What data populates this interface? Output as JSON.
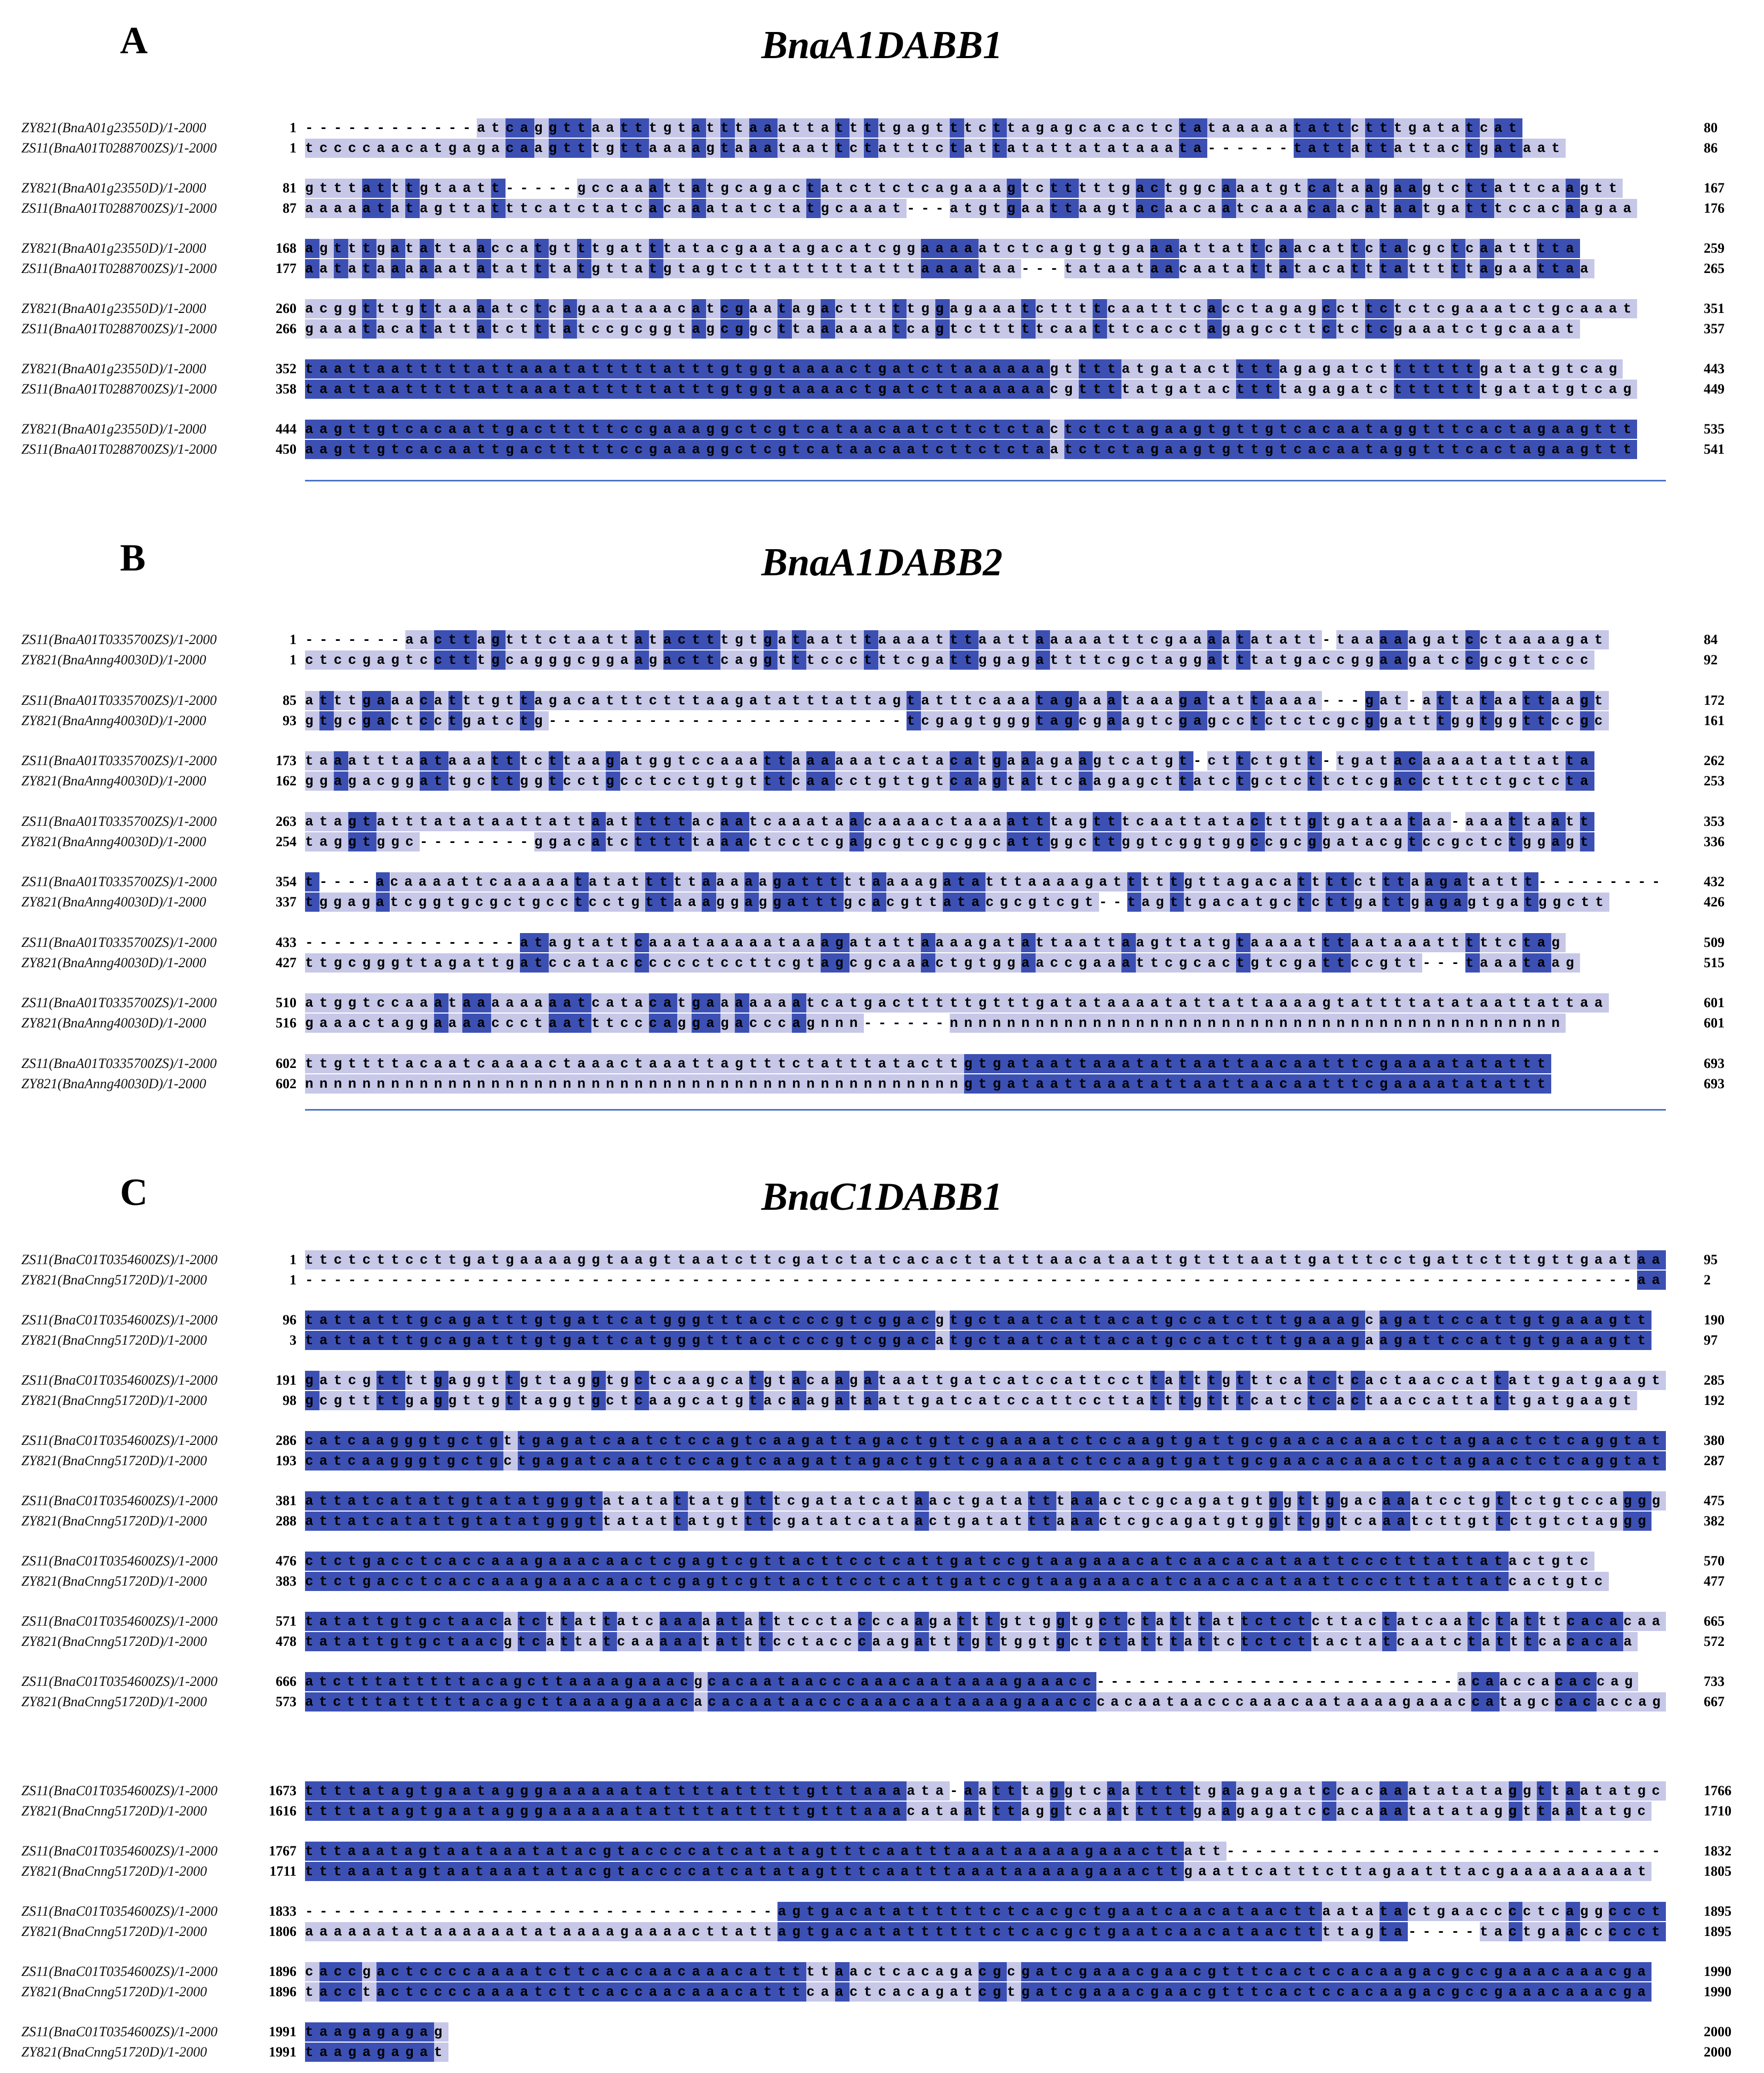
{
  "colors": {
    "dark": "#3c50b4",
    "light": "#c7c7e8",
    "rule": "#4a72c8"
  },
  "panels": [
    {
      "id": "A",
      "letter": "A",
      "title": "BnaA1DABB1",
      "blocks": [
        {
          "rows": [
            {
              "name": "ZY821(BnaA01g23550D)/1-2000",
              "start": "1",
              "seq": "------------atcaggttaatttgtatttaaattattttgagtttcttagagcacactctataaaaatattctttgatatcat",
              "end": "80"
            },
            {
              "name": "ZS11(BnaA01T0288700ZS)/1-2000",
              "start": "1",
              "seq": "tccccaacatgagacaagtttgttaaaagtaaataattctatttctattatattatataaata------tattattattactgataat",
              "end": "86"
            }
          ]
        },
        {
          "rows": [
            {
              "name": "ZY821(BnaA01g23550D)/1-2000",
              "start": "81",
              "seq": "gtttatttgtaatt-----gccaaattatgcagactatcttctcagaaagtctttttgactggcaaatgtcataagaagtcttattcaagtt",
              "end": "167"
            },
            {
              "name": "ZS11(BnaA01T0288700ZS)/1-2000",
              "start": "87",
              "seq": "aaaaatatagttatttcatctatcacaaatatctatgcaaat---atgtgaattaagtacaacaatcaaacaacataatgatttccacaagaa",
              "end": "176"
            }
          ]
        },
        {
          "rows": [
            {
              "name": "ZY821(BnaA01g23550D)/1-2000",
              "start": "168",
              "seq": "agtttgatattaaccatgtttgatttatacgaatagacatcggaaaaatctcagtgtgaaaattattcaacattctacgctcaatttta",
              "end": "259"
            },
            {
              "name": "ZS11(BnaA01T0288700ZS)/1-2000",
              "start": "177",
              "seq": "aatataaaaaatatatttatgttatgtagtcttatttttatttaaaataa---tataataacaatattatacatttatttttagaattaa",
              "end": "265"
            }
          ]
        },
        {
          "rows": [
            {
              "name": "ZY821(BnaA01g23550D)/1-2000",
              "start": "260",
              "seq": "acggtttgttaaaatctcagaataaacatcgaatagactttttggagaaatcttttcaatttcacctagagccttctctcgaaatctgcaaat",
              "end": "351"
            },
            {
              "name": "ZS11(BnaA01T0288700ZS)/1-2000",
              "start": "266",
              "seq": "gaaatacatattatctttatccgcggtagcggcttaaaaaatcagtctttttcaatttcacctagagccttctctcgaaatctgcaaat",
              "end": "357"
            }
          ]
        },
        {
          "rows": [
            {
              "name": "ZY821(BnaA01g23550D)/1-2000",
              "start": "352",
              "seq": "taattaatttttattaaatatttttatttgtggtaaaactgatcttaaaaaagttttatgatacttttagagatctttttttgatatgtcag",
              "end": "443"
            },
            {
              "name": "ZS11(BnaA01T0288700ZS)/1-2000",
              "start": "358",
              "seq": "taattaatttttattaaatatttttatttgtggtaaaactgatcttaaaaaacgttttatgatacttttagagatctttttttgatatgtcag",
              "end": "449"
            }
          ]
        },
        {
          "rows": [
            {
              "name": "ZY821(BnaA01g23550D)/1-2000",
              "start": "444",
              "seq": "aagttgtcacaattgactttttccgaaaggctcgtcataacaatcttctctactctctagaagtgttgtcacaataggtttcactagaagttt",
              "end": "535"
            },
            {
              "name": "ZS11(BnaA01T0288700ZS)/1-2000",
              "start": "450",
              "seq": "aagttgtcacaattgactttttccgaaaggctcgtcataacaatcttctctaatctctagaagtgttgtcacaataggtttcactagaagttt",
              "end": "541"
            }
          ]
        }
      ]
    },
    {
      "id": "B",
      "letter": "B",
      "title": "BnaA1DABB2",
      "blocks": [
        {
          "rows": [
            {
              "name": "ZS11(BnaA01T0335700ZS)/1-2000",
              "start": "1",
              "seq": "-------aacttagtttctaattatactttgtgataatttaaaatttaattaaaaatttcgaaaatatatt-taaaaagatcctaaaagat",
              "end": "84"
            },
            {
              "name": "ZY821(BnaAnng40030D)/1-2000",
              "start": "1",
              "seq": "ctccgagtcctttgcagggcggaagacttcaggtttccctttcgattggagattttcgctaggatttatgaccggaagatccgcgttccc",
              "end": "92"
            }
          ]
        },
        {
          "rows": [
            {
              "name": "ZS11(BnaA01T0335700ZS)/1-2000",
              "start": "85",
              "seq": "atttgaaacatttgttagacatttctttaagatatttattagtatttcaaatagaaataaagatattaaaa---gat-attataattaagt",
              "end": "172"
            },
            {
              "name": "ZY821(BnaAnng40030D)/1-2000",
              "start": "93",
              "seq": "gtgcgactcctgatctg-------------------------tcgagtgggtagcgaagtcgagcctctctcgcggatttggtggttccgc",
              "end": "161"
            }
          ]
        },
        {
          "rows": [
            {
              "name": "ZS11(BnaA01T0335700ZS)/1-2000",
              "start": "173",
              "seq": "taaatttaataaatttcttaagatggtccaaattaaaaaatcatacatgaaagaagtcatgt-cttctgtt-tgatacaaaatattatta",
              "end": "262"
            },
            {
              "name": "ZY821(BnaAnng40030D)/1-2000",
              "start": "162",
              "seq": "ggagacggattgcttggtcctgcctcctgtgtttcaacctgttgtcaagtattcaagagcttatctgctcttctcgacctttctgctcta",
              "end": "253"
            }
          ]
        },
        {
          "rows": [
            {
              "name": "ZS11(BnaA01T0335700ZS)/1-2000",
              "start": "263",
              "seq": "atagtatttatataattattaatttttacaatcaaataacaaaactaaaatttagtttcaattatactttgtgataataa-aaattaatt",
              "end": "353"
            },
            {
              "name": "ZY821(BnaAnng40030D)/1-2000",
              "start": "254",
              "seq": "taggtggc--------ggacatctttttaaactcctcgagcgtcgcggcattggcttggtcggtggccgcggatacgtccgctctggagt",
              "end": "336"
            }
          ]
        },
        {
          "rows": [
            {
              "name": "ZS11(BnaA01T0335700ZS)/1-2000",
              "start": "354",
              "seq": "t----acaaaattcaaaaatatatttttaaaaagatttttaaaagatatttaaaagatttttgttagacattttctttaagatattt---------",
              "end": "432"
            },
            {
              "name": "ZY821(BnaAnng40030D)/1-2000",
              "start": "337",
              "seq": "tggagatcggtgcgctgcctcctgttaaaggaggatttgcacgttatacgcgtcgt--tagttgacatgctcttgattgagagtgatggctt",
              "end": "426"
            }
          ]
        },
        {
          "rows": [
            {
              "name": "ZS11(BnaA01T0335700ZS)/1-2000",
              "start": "433",
              "seq": "---------------atagtattcaaataaaaataaagatattaaaagatattaattaagttatgtaaaatttaataaatttttctag",
              "end": "509"
            },
            {
              "name": "ZY821(BnaAnng40030D)/1-2000",
              "start": "427",
              "seq": "ttgcgggttagattgatccatacccccctccttcgtagcgcaaactgtggaaccgaaattcgcactgtcgattccgtt---taaataag",
              "end": "515"
            }
          ]
        },
        {
          "rows": [
            {
              "name": "ZS11(BnaA01T0335700ZS)/1-2000",
              "start": "510",
              "seq": "atggtccaaataaaaaaaatcatacatgaaaaaaatcatgactttttgtttgatataaaatattattaaaagtattttatataattattaa",
              "end": "601"
            },
            {
              "name": "ZY821(BnaAnng40030D)/1-2000",
              "start": "516",
              "seq": "gaaactaggaaaaccctaatttcccaggagacccagnnn------nnnnnnnnnnnnnnnnnnnnnnnnnnnnnnnnnnnnnnnnnnn",
              "end": "601"
            }
          ]
        },
        {
          "rows": [
            {
              "name": "ZS11(BnaA01T0335700ZS)/1-2000",
              "start": "602",
              "seq": "ttgttttacaatcaaaactaaactaaattagtttctatttatacttgtgataattaaatattaattaacaatttcgaaaatatattt",
              "end": "693"
            },
            {
              "name": "ZY821(BnaAnng40030D)/1-2000",
              "start": "602",
              "seq": "nnnnnnnnnnnnnnnnnnnnnnnnnnnnnnnnnnnnnnnnnnnnnngtgataattaaatattaattaacaatttcgaaaatatattt",
              "end": "693"
            }
          ]
        }
      ]
    },
    {
      "id": "C",
      "letter": "C",
      "title": "BnaC1DABB1",
      "blocks": [
        {
          "rows": [
            {
              "name": "ZS11(BnaC01T0354600ZS)/1-2000",
              "start": "1",
              "seq": "ttctcttccttgatgaaaaggtaagttaatcttcgatctatcacacttatttaacataattgttttaattgatttcctgattctttgttgaataa",
              "end": "95"
            },
            {
              "name": "ZY821(BnaCnng51720D)/1-2000",
              "start": "1",
              "seq": "---------------------------------------------------------------------------------------------aa",
              "end": "2"
            }
          ]
        },
        {
          "rows": [
            {
              "name": "ZS11(BnaC01T0354600ZS)/1-2000",
              "start": "96",
              "seq": "tattatttgcagatttgtgattcatgggtttactcccgtcggacgtgctaatcattacatgccatctttgaaagcagattccattgtgaaagtt",
              "end": "190"
            },
            {
              "name": "ZY821(BnaCnng51720D)/1-2000",
              "start": "3",
              "seq": "tattatttgcagatttgtgattcatgggtttactcccgtcggacatgctaatcattacatgccatctttgaaagaagattccattgtgaaagtt",
              "end": "97"
            }
          ]
        },
        {
          "rows": [
            {
              "name": "ZS11(BnaC01T0354600ZS)/1-2000",
              "start": "191",
              "seq": "gatcgttttgaggttgttaggtgctcaagcatgtacaagataattgatcatccattccttatttgtttcatctcactaaccattattgatgaagt",
              "end": "285"
            },
            {
              "name": "ZY821(BnaCnng51720D)/1-2000",
              "start": "98",
              "seq": "gcgttttgaggttgttaggtgctcaagcatgtacaagataattgatcatccattccttatttgtttcatctcactaaccattattgatgaagt",
              "end": "192"
            }
          ]
        },
        {
          "rows": [
            {
              "name": "ZS11(BnaC01T0354600ZS)/1-2000",
              "start": "286",
              "seq": "catcaagggtgctgttgagatcaatctccagtcaagattagactgttcgaaaatctccaagtgattgcgaacacaaactctagaactctcaggtat",
              "end": "380"
            },
            {
              "name": "ZY821(BnaCnng51720D)/1-2000",
              "start": "193",
              "seq": "catcaagggtgctgctgagatcaatctccagtcaagattagactgttcgaaaatctccaagtgattgcgaacacaaactctagaactctcaggtat",
              "end": "287"
            }
          ]
        },
        {
          "rows": [
            {
              "name": "ZS11(BnaC01T0354600ZS)/1-2000",
              "start": "381",
              "seq": "attatcatattgtatatgggtatatattatgtttcgatatcataactgatatttaaactcgcagatgtggttggacaaatcctgttctgtccaggg",
              "end": "475"
            },
            {
              "name": "ZY821(BnaCnng51720D)/1-2000",
              "start": "288",
              "seq": "attatcatattgtatatgggttatattatgtttcgatatcataactgatatttaaactcgcagatgtggttggtcaaatcttgttctgtctaggg",
              "end": "382"
            }
          ]
        },
        {
          "rows": [
            {
              "name": "ZS11(BnaC01T0354600ZS)/1-2000",
              "start": "476",
              "seq": "ctctgacctcaccaaagaaacaactcgagtcgttacttcctcattgatccgtaagaaacatcaacacataattccctttattatactgtc",
              "end": "570"
            },
            {
              "name": "ZY821(BnaCnng51720D)/1-2000",
              "start": "383",
              "seq": "ctctgacctcaccaaagaaacaactcgagtcgttacttcctcattgatccgtaagaaacatcaacacataattccctttattatcactgtc",
              "end": "477"
            }
          ]
        },
        {
          "rows": [
            {
              "name": "ZS11(BnaC01T0354600ZS)/1-2000",
              "start": "571",
              "seq": "tatattgtgctaacatcttattatcaaaaatatttcctacccaagatttgttggtgctctatttattctctcttactatcaatctatttcacacaa",
              "end": "665"
            },
            {
              "name": "ZY821(BnaCnng51720D)/1-2000",
              "start": "478",
              "seq": "tatattgtgctaacgtcattatcaaaaatatttcctacccaagatttgttggtgctctatttattctctcttactatcaatctatttcacacaa",
              "end": "572"
            }
          ]
        },
        {
          "rows": [
            {
              "name": "ZS11(BnaC01T0354600ZS)/1-2000",
              "start": "666",
              "seq": "atctttatttttacagcttaaaagaaacgcacaataacccaaacaataaaagaaacc--------------------------acaaccacaccag",
              "end": "733"
            },
            {
              "name": "ZY821(BnaCnng51720D)/1-2000",
              "start": "573",
              "seq": "atctttatttttacagcttaaaagaaacacacaataacccaaacaataaaagaaacccacaataacccaaacaataaaagaaaccatagccacaccag",
              "end": "667"
            }
          ]
        },
        {
          "gap_before": true,
          "rows": [
            {
              "name": "ZS11(BnaC01T0354600ZS)/1-2000",
              "start": "1673",
              "seq": "ttttatagtgaatagggaaaaaatattttatttttgtttaaaata-aatttaggtcaatttttgaagagatccacaaatatataggttaatatgc",
              "end": "1766"
            },
            {
              "name": "ZY821(BnaCnng51720D)/1-2000",
              "start": "1616",
              "seq": "ttttatagtgaatagggaaaaaatattttatttttgtttaaacataatttaggtcaatttttgaagagatccacaaatatataggttaatatgc",
              "end": "1710"
            }
          ]
        },
        {
          "rows": [
            {
              "name": "ZS11(BnaC01T0354600ZS)/1-2000",
              "start": "1767",
              "seq": "tttaaatagtaataaatatacgtaccccatcatatagtttcaatttaaataaaaagaaacttatt-------------------------------",
              "end": "1832"
            },
            {
              "name": "ZY821(BnaCnng51720D)/1-2000",
              "start": "1711",
              "seq": "tttaaatagtaataaatatacgtaccccatcatatagtttcaatttaaataaaaagaaacttgaattcatttcttagaatttacgaaaaaaaaat",
              "end": "1805"
            }
          ]
        },
        {
          "rows": [
            {
              "name": "ZS11(BnaC01T0354600ZS)/1-2000",
              "start": "1833",
              "seq": "---------------------------------agtgacatattttttctcacgctgaatcaacataacttaatatactgaacccctcaggccct",
              "end": "1895"
            },
            {
              "name": "ZY821(BnaCnng51720D)/1-2000",
              "start": "1806",
              "seq": "aaaaaatataaaaaatataaaagaaaacttattagtgacatattttttctcacgctgaatcaacataacttttagta-----tactgaaccccct",
              "end": "1895"
            }
          ]
        },
        {
          "rows": [
            {
              "name": "ZS11(BnaC01T0354600ZS)/1-2000",
              "start": "1896",
              "seq": "caccgactccccaaaatcttcaccaacaaacatttttaactcacagacgcgatcgaaacgaacgtttcactccacaagacgccgaaacaaacga",
              "end": "1990"
            },
            {
              "name": "ZY821(BnaCnng51720D)/1-2000",
              "start": "1896",
              "seq": "tacctactccccaaaatcttcaccaacaaacatttcaactcacagatcgtgatcgaaacgaacgtttcactccacaagacgccgaaacaaacga",
              "end": "1990"
            }
          ]
        },
        {
          "rows": [
            {
              "name": "ZS11(BnaC01T0354600ZS)/1-2000",
              "start": "1991",
              "seq": "taagagagag",
              "end": "2000"
            },
            {
              "name": "ZY821(BnaCnng51720D)/1-2000",
              "start": "1991",
              "seq": "taagagagat",
              "end": "2000"
            }
          ]
        }
      ]
    }
  ]
}
